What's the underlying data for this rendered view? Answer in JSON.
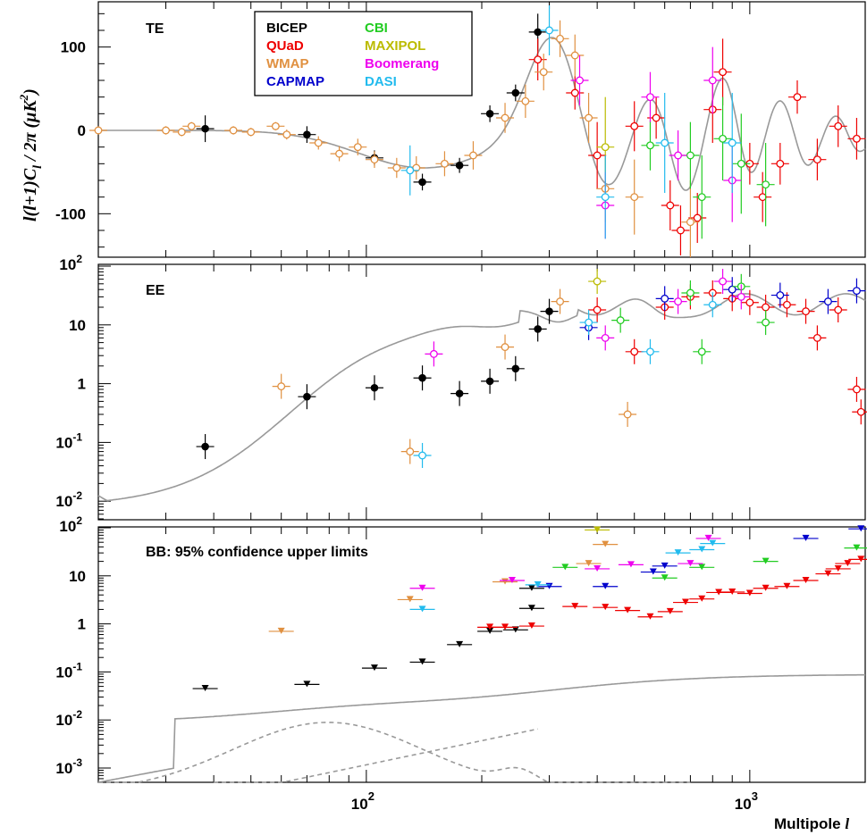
{
  "chart_data": [
    {
      "panel": "TE",
      "type": "scatter",
      "label": "TE",
      "yscale": "linear",
      "ylim": [
        -150,
        150
      ],
      "yticks": [
        "-100",
        "0",
        "100"
      ],
      "xscale": "log",
      "xlim": [
        20,
        2000
      ],
      "experiments": [
        {
          "name": "BICEP",
          "color": "#000000",
          "marker": "filled-circle",
          "points": [
            [
              38,
              2,
              16
            ],
            [
              70,
              -5,
              10
            ],
            [
              105,
              -33,
              9
            ],
            [
              140,
              -62,
              10
            ],
            [
              175,
              -42,
              9
            ],
            [
              210,
              20,
              10
            ],
            [
              245,
              45,
              10
            ],
            [
              280,
              118,
              22
            ]
          ]
        },
        {
          "name": "QUaD",
          "color": "#ee0000",
          "marker": "open-circle",
          "points": [
            [
              280,
              85,
              25
            ],
            [
              350,
              45,
              20
            ],
            [
              400,
              -30,
              40
            ],
            [
              500,
              5,
              30
            ],
            [
              570,
              15,
              25
            ],
            [
              620,
              -90,
              30
            ],
            [
              660,
              -120,
              30
            ],
            [
              730,
              -105,
              30
            ],
            [
              800,
              25,
              40
            ],
            [
              850,
              70,
              40
            ],
            [
              1000,
              -40,
              25
            ],
            [
              1080,
              -80,
              30
            ],
            [
              1200,
              -40,
              25
            ],
            [
              1330,
              40,
              20
            ],
            [
              1500,
              -35,
              25
            ],
            [
              1700,
              5,
              25
            ],
            [
              1900,
              -10,
              25
            ]
          ]
        },
        {
          "name": "WMAP",
          "color": "#e09040",
          "marker": "open-circle",
          "points": [
            [
              20,
              0,
              5
            ],
            [
              30,
              0,
              5
            ],
            [
              33,
              -2,
              5
            ],
            [
              35,
              5,
              5
            ],
            [
              45,
              0,
              5
            ],
            [
              50,
              -2,
              5
            ],
            [
              58,
              5,
              5
            ],
            [
              62,
              -5,
              6
            ],
            [
              75,
              -15,
              8
            ],
            [
              85,
              -28,
              9
            ],
            [
              95,
              -20,
              10
            ],
            [
              105,
              -35,
              10
            ],
            [
              120,
              -45,
              12
            ],
            [
              135,
              -45,
              14
            ],
            [
              160,
              -40,
              15
            ],
            [
              190,
              -30,
              17
            ],
            [
              230,
              15,
              18
            ],
            [
              260,
              35,
              20
            ],
            [
              290,
              70,
              22
            ],
            [
              320,
              110,
              22
            ],
            [
              350,
              90,
              25
            ],
            [
              380,
              15,
              30
            ],
            [
              420,
              -70,
              40
            ],
            [
              500,
              -80,
              45
            ],
            [
              700,
              -110,
              50
            ]
          ]
        },
        {
          "name": "CAPMAP",
          "color": "#0000cc",
          "marker": "open-circle",
          "points": []
        },
        {
          "name": "CBI",
          "color": "#22cc22",
          "marker": "open-circle",
          "points": [
            [
              550,
              -18,
              30
            ],
            [
              700,
              -30,
              40
            ],
            [
              750,
              -80,
              50
            ],
            [
              850,
              -10,
              50
            ],
            [
              950,
              -40,
              60
            ],
            [
              1100,
              -65,
              50
            ]
          ]
        },
        {
          "name": "MAXIPOL",
          "color": "#bbbb00",
          "marker": "open-circle",
          "points": [
            [
              420,
              -20,
              60
            ]
          ]
        },
        {
          "name": "Boomerang",
          "color": "#ee00ee",
          "marker": "open-circle",
          "points": [
            [
              360,
              60,
              30
            ],
            [
              420,
              -90,
              40
            ],
            [
              550,
              40,
              30
            ],
            [
              650,
              -30,
              30
            ],
            [
              800,
              60,
              40
            ],
            [
              900,
              -60,
              50
            ]
          ]
        },
        {
          "name": "DASI",
          "color": "#22bbee",
          "marker": "open-circle",
          "points": [
            [
              130,
              -48,
              30
            ],
            [
              300,
              120,
              30
            ],
            [
              420,
              -80,
              50
            ],
            [
              600,
              -15,
              60
            ],
            [
              900,
              -15,
              60
            ]
          ]
        }
      ]
    },
    {
      "panel": "EE",
      "type": "scatter",
      "label": "EE",
      "yscale": "log",
      "ylim": [
        0.005,
        100
      ],
      "xscale": "log",
      "xlim": [
        20,
        2000
      ],
      "experiments": [
        {
          "name": "BICEP",
          "color": "#000000",
          "marker": "filled-circle",
          "points": [
            [
              38,
              0.085
            ],
            [
              70,
              0.6
            ],
            [
              105,
              0.85
            ],
            [
              140,
              1.25
            ],
            [
              175,
              0.68
            ],
            [
              210,
              1.1
            ],
            [
              245,
              1.8
            ],
            [
              280,
              8.5
            ],
            [
              300,
              17
            ]
          ]
        },
        {
          "name": "QUaD",
          "color": "#ee0000",
          "marker": "open-circle",
          "points": [
            [
              400,
              18
            ],
            [
              500,
              3.5
            ],
            [
              600,
              20
            ],
            [
              700,
              30
            ],
            [
              800,
              35
            ],
            [
              900,
              28
            ],
            [
              1000,
              24
            ],
            [
              1100,
              20
            ],
            [
              1250,
              22
            ],
            [
              1400,
              17
            ],
            [
              1500,
              6
            ],
            [
              1700,
              18
            ],
            [
              1900,
              0.8
            ],
            [
              1950,
              0.33
            ]
          ]
        },
        {
          "name": "WMAP",
          "color": "#e09040",
          "marker": "open-circle",
          "points": [
            [
              60,
              0.9
            ],
            [
              130,
              0.07
            ],
            [
              230,
              4.2
            ],
            [
              320,
              25
            ],
            [
              480,
              0.3
            ]
          ]
        },
        {
          "name": "CAPMAP",
          "color": "#0000cc",
          "marker": "open-circle",
          "points": [
            [
              380,
              9
            ],
            [
              600,
              28
            ],
            [
              900,
              40
            ],
            [
              1200,
              32
            ],
            [
              1600,
              25
            ],
            [
              1900,
              38
            ]
          ]
        },
        {
          "name": "CBI",
          "color": "#22cc22",
          "marker": "open-circle",
          "points": [
            [
              460,
              12
            ],
            [
              700,
              35
            ],
            [
              750,
              3.5
            ],
            [
              950,
              45
            ],
            [
              1100,
              11
            ]
          ]
        },
        {
          "name": "MAXIPOL",
          "color": "#bbbb00",
          "marker": "open-circle",
          "points": [
            [
              400,
              55
            ]
          ]
        },
        {
          "name": "Boomerang",
          "color": "#ee00ee",
          "marker": "open-circle",
          "points": [
            [
              150,
              3.2
            ],
            [
              420,
              6
            ],
            [
              650,
              25
            ],
            [
              850,
              55
            ],
            [
              950,
              30
            ]
          ]
        },
        {
          "name": "DASI",
          "color": "#22bbee",
          "marker": "open-circle",
          "points": [
            [
              140,
              0.06
            ],
            [
              380,
              11
            ],
            [
              550,
              3.5
            ],
            [
              800,
              22
            ]
          ]
        }
      ]
    },
    {
      "panel": "BB",
      "type": "scatter",
      "label": "BB: 95% confidence upper limits",
      "yscale": "log",
      "ylim": [
        0.0005,
        100
      ],
      "xscale": "log",
      "xlim": [
        20,
        2000
      ],
      "x_axis_label": "Multipole l",
      "y_axis_label": "l(l+1)C_l / 2π (μK²)",
      "experiments": [
        {
          "name": "BICEP",
          "color": "#000000",
          "marker": "down-triangle",
          "points": [
            [
              38,
              0.045
            ],
            [
              70,
              0.055
            ],
            [
              105,
              0.12
            ],
            [
              140,
              0.16
            ],
            [
              175,
              0.37
            ],
            [
              210,
              0.7
            ],
            [
              245,
              0.75
            ],
            [
              270,
              2.1
            ],
            [
              270,
              5.5
            ]
          ]
        },
        {
          "name": "QUaD",
          "color": "#ee0000",
          "marker": "down-triangle",
          "points": [
            [
              210,
              0.85
            ],
            [
              230,
              0.85
            ],
            [
              270,
              0.9
            ],
            [
              350,
              2.3
            ],
            [
              420,
              2.2
            ],
            [
              480,
              1.9
            ],
            [
              550,
              1.4
            ],
            [
              620,
              1.8
            ],
            [
              680,
              2.8
            ],
            [
              750,
              3.3
            ],
            [
              830,
              4.5
            ],
            [
              900,
              4.6
            ],
            [
              1000,
              4.3
            ],
            [
              1100,
              5.5
            ],
            [
              1250,
              6
            ],
            [
              1400,
              8
            ],
            [
              1600,
              11
            ],
            [
              1700,
              14
            ],
            [
              1800,
              18
            ],
            [
              1950,
              22
            ]
          ]
        },
        {
          "name": "WMAP",
          "color": "#e09040",
          "marker": "down-triangle",
          "points": [
            [
              60,
              0.7
            ],
            [
              130,
              3.2
            ],
            [
              230,
              7.5
            ],
            [
              380,
              18
            ],
            [
              420,
              45
            ]
          ]
        },
        {
          "name": "CAPMAP",
          "color": "#0000cc",
          "marker": "down-triangle",
          "points": [
            [
              300,
              6
            ],
            [
              420,
              6
            ],
            [
              560,
              12
            ],
            [
              600,
              16
            ],
            [
              1400,
              60
            ],
            [
              1950,
              95
            ]
          ]
        },
        {
          "name": "CBI",
          "color": "#22cc22",
          "marker": "down-triangle",
          "points": [
            [
              330,
              15
            ],
            [
              600,
              9
            ],
            [
              750,
              15
            ],
            [
              1100,
              20
            ],
            [
              1900,
              38
            ]
          ]
        },
        {
          "name": "MAXIPOL",
          "color": "#bbbb00",
          "marker": "down-triangle",
          "points": [
            [
              400,
              90
            ]
          ]
        },
        {
          "name": "Boomerang",
          "color": "#ee00ee",
          "marker": "down-triangle",
          "points": [
            [
              140,
              5.5
            ],
            [
              240,
              8
            ],
            [
              400,
              14
            ],
            [
              490,
              17
            ],
            [
              700,
              18
            ],
            [
              780,
              60
            ]
          ]
        },
        {
          "name": "DASI",
          "color": "#22bbee",
          "marker": "down-triangle",
          "points": [
            [
              140,
              2
            ],
            [
              280,
              6.5
            ],
            [
              650,
              30
            ],
            [
              750,
              35
            ],
            [
              800,
              47
            ]
          ]
        }
      ]
    }
  ],
  "axis_text": {
    "y_title": "l(l+1)C",
    "y_title_sub": "l",
    "y_title_rest": " / 2π  (μK",
    "y_title_sup": "2",
    "y_title_end": ")",
    "x_title": "Multipole",
    "x_title_l": "l",
    "x_ticks": [
      {
        "base": "10",
        "exp": "2"
      },
      {
        "base": "10",
        "exp": "3"
      }
    ],
    "te_ticks": [
      "100",
      "0",
      "-100"
    ],
    "ee_ticks": [
      {
        "base": "10",
        "exp": "2",
        "val": 100
      },
      {
        "base": "10",
        "exp": "",
        "val": 10
      },
      {
        "base": "1",
        "exp": "",
        "val": 1
      },
      {
        "base": "10",
        "exp": "-1",
        "val": 0.1
      },
      {
        "base": "10",
        "exp": "-2",
        "val": 0.01
      }
    ],
    "bb_ticks": [
      {
        "base": "10",
        "exp": "2",
        "val": 100
      },
      {
        "base": "10",
        "exp": "",
        "val": 10
      },
      {
        "base": "1",
        "exp": "",
        "val": 1
      },
      {
        "base": "10",
        "exp": "-1",
        "val": 0.1
      },
      {
        "base": "10",
        "exp": "-2",
        "val": 0.01
      },
      {
        "base": "10",
        "exp": "-3",
        "val": 0.001
      }
    ]
  },
  "legend": [
    {
      "name": "BICEP",
      "color": "#000000"
    },
    {
      "name": "QUaD",
      "color": "#ee0000"
    },
    {
      "name": "WMAP",
      "color": "#e09040"
    },
    {
      "name": "CAPMAP",
      "color": "#0000cc"
    },
    {
      "name": "CBI",
      "color": "#22cc22"
    },
    {
      "name": "MAXIPOL",
      "color": "#bbbb00"
    },
    {
      "name": "Boomerang",
      "color": "#ee00ee"
    },
    {
      "name": "DASI",
      "color": "#22bbee"
    }
  ]
}
